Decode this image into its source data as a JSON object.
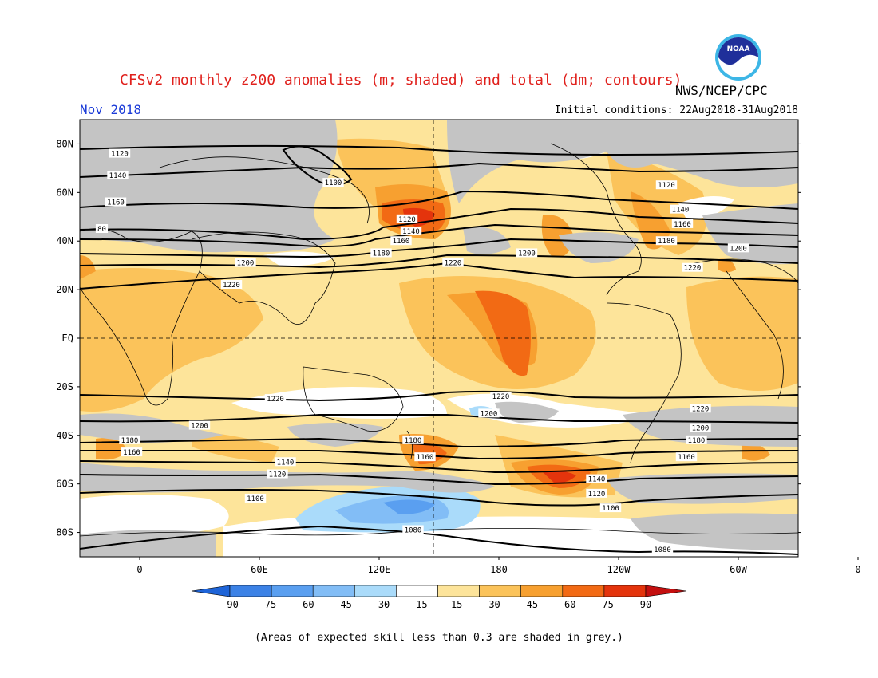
{
  "header": {
    "title": "CFSv2 monthly z200 anomalies (m; shaded) and total (dm; contours)",
    "agency": "NWS/NCEP/CPC",
    "month": "Nov 2018",
    "initial_conditions": "Initial conditions: 22Aug2018-31Aug2018",
    "logo_text": "NOAA"
  },
  "map": {
    "lat_labels": [
      "80N",
      "60N",
      "40N",
      "20N",
      "EQ",
      "20S",
      "40S",
      "60S",
      "80S"
    ],
    "lon_labels": [
      "0",
      "60E",
      "120E",
      "180",
      "120W",
      "60W",
      "0"
    ],
    "lon_range": [
      -30,
      330
    ],
    "lat_range": [
      -90,
      90
    ],
    "contour_labels": [
      {
        "text": "1120",
        "lon": -10,
        "lat": 76
      },
      {
        "text": "1140",
        "lon": -11,
        "lat": 67
      },
      {
        "text": "1160",
        "lon": -12,
        "lat": 56
      },
      {
        "text": "80",
        "lon": -19,
        "lat": 45
      },
      {
        "text": "1100",
        "lon": 97,
        "lat": 64
      },
      {
        "text": "1120",
        "lon": 134,
        "lat": 49
      },
      {
        "text": "1140",
        "lon": 136,
        "lat": 44
      },
      {
        "text": "1160",
        "lon": 131,
        "lat": 40
      },
      {
        "text": "1180",
        "lon": 121,
        "lat": 35
      },
      {
        "text": "1200",
        "lon": 53,
        "lat": 31
      },
      {
        "text": "1220",
        "lon": 46,
        "lat": 22
      },
      {
        "text": "1220",
        "lon": 157,
        "lat": 31
      },
      {
        "text": "1200",
        "lon": 194,
        "lat": 35
      },
      {
        "text": "1120",
        "lon": 264,
        "lat": 63
      },
      {
        "text": "1140",
        "lon": 271,
        "lat": 53
      },
      {
        "text": "1160",
        "lon": 272,
        "lat": 47
      },
      {
        "text": "1180",
        "lon": 264,
        "lat": 40
      },
      {
        "text": "1200",
        "lon": 300,
        "lat": 37
      },
      {
        "text": "1220",
        "lon": 277,
        "lat": 29
      },
      {
        "text": "1220",
        "lon": 68,
        "lat": -25
      },
      {
        "text": "1200",
        "lon": 30,
        "lat": -36
      },
      {
        "text": "1220",
        "lon": 181,
        "lat": -24
      },
      {
        "text": "1200",
        "lon": 175,
        "lat": -31
      },
      {
        "text": "1180",
        "lon": 137,
        "lat": -42
      },
      {
        "text": "1160",
        "lon": 143,
        "lat": -49
      },
      {
        "text": "1180",
        "lon": -5,
        "lat": -42
      },
      {
        "text": "1160",
        "lon": -4,
        "lat": -47
      },
      {
        "text": "1140",
        "lon": 73,
        "lat": -51
      },
      {
        "text": "1120",
        "lon": 69,
        "lat": -56
      },
      {
        "text": "1100",
        "lon": 58,
        "lat": -66
      },
      {
        "text": "1080",
        "lon": 137,
        "lat": -79
      },
      {
        "text": "1220",
        "lon": 281,
        "lat": -29
      },
      {
        "text": "1200",
        "lon": 281,
        "lat": -37
      },
      {
        "text": "1180",
        "lon": 279,
        "lat": -42
      },
      {
        "text": "1160",
        "lon": 274,
        "lat": -49
      },
      {
        "text": "1140",
        "lon": 229,
        "lat": -58
      },
      {
        "text": "1120",
        "lon": 229,
        "lat": -64
      },
      {
        "text": "1100",
        "lon": 236,
        "lat": -70
      },
      {
        "text": "1080",
        "lon": 262,
        "lat": -87
      }
    ]
  },
  "colorbar": {
    "labels": [
      "-90",
      "-75",
      "-60",
      "-45",
      "-30",
      "-15",
      "15",
      "30",
      "45",
      "60",
      "75",
      "90"
    ],
    "colors": [
      "#1e64d8",
      "#3c82e6",
      "#5a9ff0",
      "#82bdf6",
      "#aadbfa",
      "#ffffff",
      "#fde49a",
      "#fbc35a",
      "#f7a030",
      "#f26a14",
      "#e4340c",
      "#c40f0f"
    ]
  },
  "footnote": "(Areas of expected skill less than 0.3 are shaded in grey.)"
}
